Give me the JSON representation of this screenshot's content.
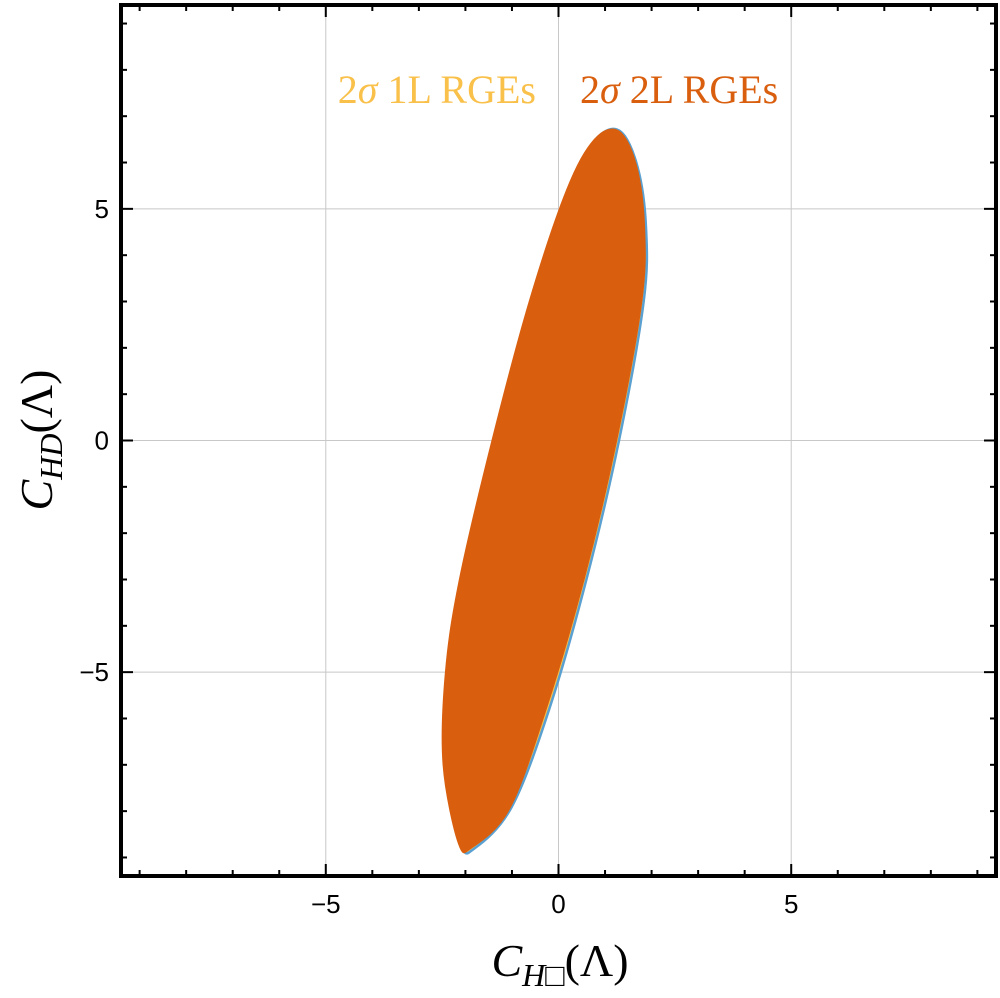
{
  "chart_data": {
    "type": "contour",
    "title": "",
    "xlabel": {
      "main": "C",
      "sub": "H□",
      "arg": "(Λ)"
    },
    "ylabel": {
      "main": "C",
      "sub": "HD",
      "arg": "(Λ)"
    },
    "xlim": [
      -9.4,
      9.4
    ],
    "ylim": [
      -9.4,
      9.4
    ],
    "xticks": [
      -5,
      0,
      5
    ],
    "yticks": [
      -5,
      0,
      5
    ],
    "xtick_labels": [
      "−5",
      "0",
      "5"
    ],
    "ytick_labels": [
      "−5",
      "0",
      "5"
    ],
    "grid": true,
    "legend": {
      "placement": "top-center",
      "entries": [
        {
          "prefix": "2",
          "sigma": "σ",
          "text": " 1L RGEs",
          "color": "#F9C04A"
        },
        {
          "prefix": "2",
          "sigma": "σ",
          "text": " 2L RGEs",
          "color": "#D95F0E"
        }
      ]
    },
    "series": [
      {
        "name": "2σ 1L RGEs",
        "kind": "ellipse",
        "fill": "#F9C04A",
        "stroke": "#5AA0D0",
        "center": [
          -0.23,
          -0.8
        ],
        "points": [
          [
            1.32,
            6.68
          ],
          [
            1.7,
            5.9
          ],
          [
            1.88,
            4.6
          ],
          [
            1.83,
            3.0
          ],
          [
            1.3,
            0.0
          ],
          [
            0.6,
            -3.0
          ],
          [
            -0.2,
            -5.8
          ],
          [
            -1.0,
            -7.9
          ],
          [
            -1.8,
            -8.8
          ],
          [
            -2.1,
            -8.7
          ],
          [
            -2.45,
            -7.0
          ],
          [
            -2.4,
            -5.0
          ],
          [
            -2.1,
            -3.0
          ],
          [
            -1.4,
            0.0
          ],
          [
            -0.6,
            3.0
          ],
          [
            0.2,
            5.4
          ],
          [
            0.8,
            6.5
          ]
        ]
      },
      {
        "name": "2σ 2L RGEs",
        "kind": "ellipse",
        "fill": "#D95F0E",
        "stroke": "#D95F0E",
        "center": [
          -0.3,
          -0.85
        ],
        "points": [
          [
            1.3,
            6.68
          ],
          [
            1.68,
            5.92
          ],
          [
            1.85,
            4.6
          ],
          [
            1.79,
            3.0
          ],
          [
            1.25,
            0.0
          ],
          [
            0.55,
            -3.0
          ],
          [
            -0.28,
            -5.85
          ],
          [
            -1.05,
            -7.95
          ],
          [
            -1.85,
            -8.78
          ],
          [
            -2.15,
            -8.7
          ],
          [
            -2.48,
            -7.0
          ],
          [
            -2.43,
            -5.0
          ],
          [
            -2.13,
            -3.0
          ],
          [
            -1.43,
            0.0
          ],
          [
            -0.63,
            3.0
          ],
          [
            0.17,
            5.4
          ],
          [
            0.77,
            6.5
          ]
        ]
      }
    ]
  }
}
